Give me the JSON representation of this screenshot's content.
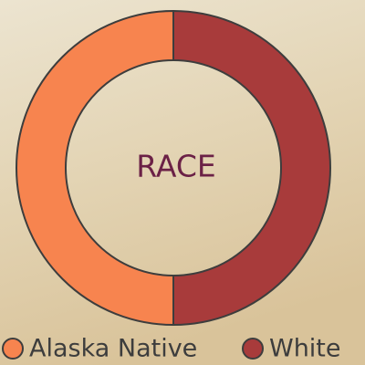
{
  "chart_data": {
    "type": "donut",
    "title": "RACE",
    "categories": [
      "Alaska Native",
      "White"
    ],
    "values": [
      50,
      50
    ],
    "colors": [
      "#f7844f",
      "#a83b3b"
    ]
  }
}
